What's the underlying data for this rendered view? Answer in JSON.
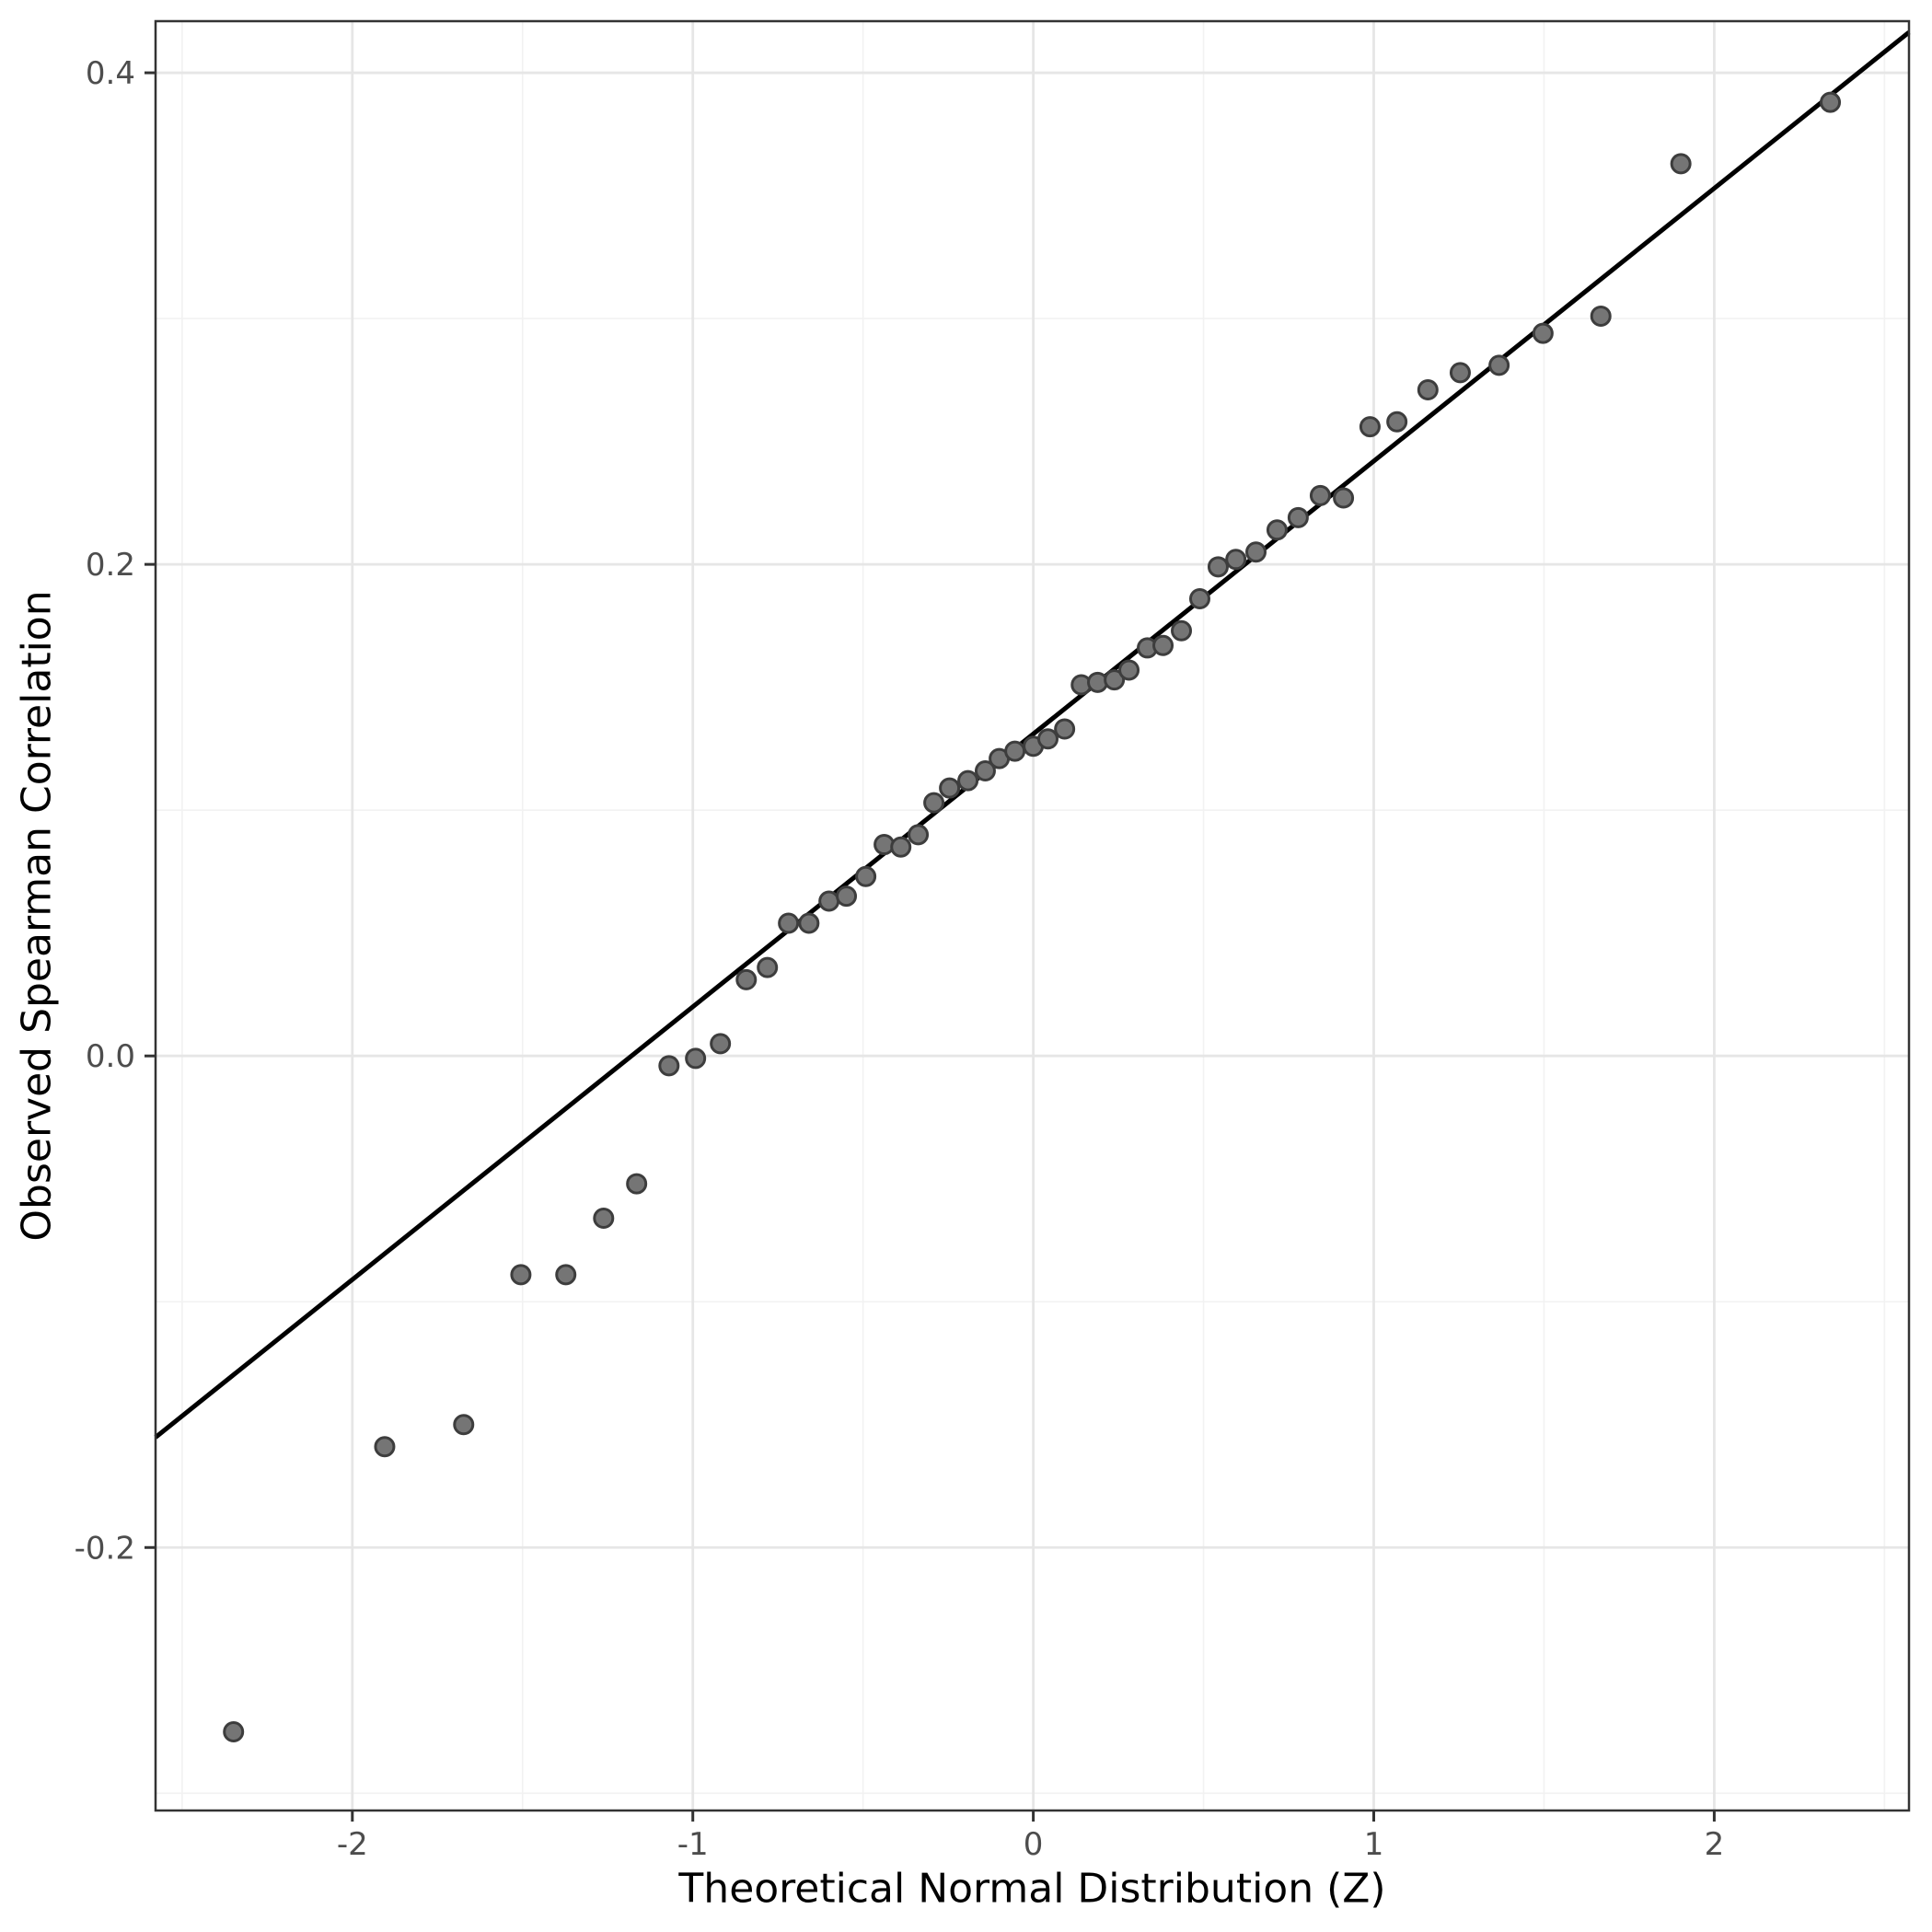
{
  "chart_data": {
    "type": "scatter",
    "subtype": "qq-plot",
    "title": "",
    "xlabel": "Theoretical Normal Distribution (Z)",
    "ylabel": "Observed Spearman Correlation",
    "xlim": [
      -2.578,
      2.572
    ],
    "ylim": [
      -0.307,
      0.421
    ],
    "grid": true,
    "legend_position": "none",
    "x_major_ticks": [
      {
        "value": -2,
        "label": "-2"
      },
      {
        "value": -1,
        "label": "-1"
      },
      {
        "value": 0,
        "label": "0"
      },
      {
        "value": 1,
        "label": "1"
      },
      {
        "value": 2,
        "label": "2"
      }
    ],
    "x_minor_ticks": [
      -2.5,
      -1.5,
      -0.5,
      0.5,
      1.5,
      2.5
    ],
    "y_major_ticks": [
      {
        "value": 0.4,
        "label": "0.4"
      },
      {
        "value": 0.2,
        "label": "0.2"
      },
      {
        "value": 0.0,
        "label": "0.0"
      },
      {
        "value": -0.2,
        "label": "-0.2"
      }
    ],
    "y_minor_ticks": [
      0.3,
      0.1,
      -0.1,
      -0.3
    ],
    "reference_line": {
      "slope": 0.111,
      "intercept": 0.131
    },
    "points": [
      [
        -2.349,
        -0.275
      ],
      [
        -1.905,
        -0.159
      ],
      [
        -1.673,
        -0.15
      ],
      [
        -1.505,
        -0.089
      ],
      [
        -1.373,
        -0.089
      ],
      [
        -1.262,
        -0.066
      ],
      [
        -1.165,
        -0.052
      ],
      [
        -1.07,
        -0.004
      ],
      [
        -0.992,
        -0.001
      ],
      [
        -0.919,
        0.005
      ],
      [
        -0.843,
        0.031
      ],
      [
        -0.781,
        0.036
      ],
      [
        -0.719,
        0.054
      ],
      [
        -0.659,
        0.054
      ],
      [
        -0.6,
        0.063
      ],
      [
        -0.549,
        0.065
      ],
      [
        -0.492,
        0.073
      ],
      [
        -0.438,
        0.086
      ],
      [
        -0.389,
        0.085
      ],
      [
        -0.338,
        0.09
      ],
      [
        -0.292,
        0.103
      ],
      [
        -0.246,
        0.109
      ],
      [
        -0.192,
        0.112
      ],
      [
        -0.141,
        0.116
      ],
      [
        -0.1,
        0.121
      ],
      [
        -0.054,
        0.124
      ],
      [
        0.0,
        0.126
      ],
      [
        0.043,
        0.129
      ],
      [
        0.092,
        0.133
      ],
      [
        0.141,
        0.151
      ],
      [
        0.189,
        0.152
      ],
      [
        0.238,
        0.153
      ],
      [
        0.281,
        0.157
      ],
      [
        0.335,
        0.166
      ],
      [
        0.381,
        0.167
      ],
      [
        0.435,
        0.173
      ],
      [
        0.489,
        0.186
      ],
      [
        0.543,
        0.199
      ],
      [
        0.595,
        0.202
      ],
      [
        0.654,
        0.205
      ],
      [
        0.716,
        0.214
      ],
      [
        0.778,
        0.219
      ],
      [
        0.843,
        0.228
      ],
      [
        0.911,
        0.227
      ],
      [
        0.989,
        0.256
      ],
      [
        1.068,
        0.258
      ],
      [
        1.159,
        0.271
      ],
      [
        1.254,
        0.278
      ],
      [
        1.368,
        0.281
      ],
      [
        1.497,
        0.294
      ],
      [
        1.667,
        0.301
      ],
      [
        1.902,
        0.363
      ],
      [
        2.341,
        0.388
      ]
    ],
    "point_style": {
      "fill": "#757575",
      "stroke": "#3d3d3d",
      "radius_px": 10,
      "stroke_width": 3
    },
    "colors": {
      "background": "#ffffff",
      "panel_background": "#ffffff",
      "panel_border": "#333333",
      "major_grid": "#e6e6e6",
      "minor_grid": "#f2f2f2",
      "tick_mark": "#333333",
      "tick_label": "#4d4d4d",
      "axis_title": "#000000",
      "reference_line": "#000000"
    }
  }
}
